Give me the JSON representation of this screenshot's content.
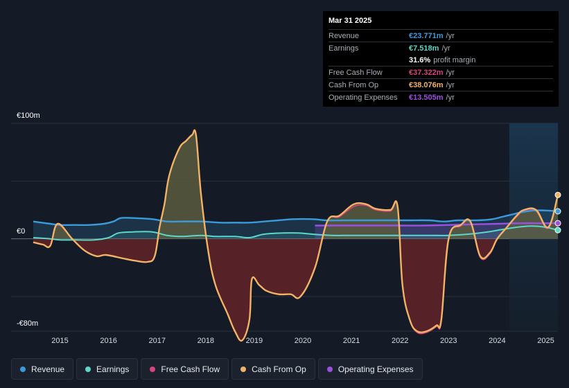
{
  "tooltip": {
    "date": "Mar 31 2025",
    "rows": [
      {
        "label": "Revenue",
        "value": "€23.771m",
        "unit": "/yr",
        "color": "#3a9bdc"
      },
      {
        "label": "Earnings",
        "value": "€7.518m",
        "unit": "/yr",
        "color": "#5ad8c8"
      },
      {
        "label": "",
        "value": "31.6%",
        "unit": "profit margin",
        "color": "#ffffff"
      },
      {
        "label": "Free Cash Flow",
        "value": "€37.322m",
        "unit": "/yr",
        "color": "#d6457d"
      },
      {
        "label": "Cash From Op",
        "value": "€38.076m",
        "unit": "/yr",
        "color": "#f2b366"
      },
      {
        "label": "Operating Expenses",
        "value": "€13.505m",
        "unit": "/yr",
        "color": "#9b51e0"
      }
    ]
  },
  "legend": [
    {
      "label": "Revenue",
      "color": "#3a9bdc"
    },
    {
      "label": "Earnings",
      "color": "#5ad8c8"
    },
    {
      "label": "Free Cash Flow",
      "color": "#d6457d"
    },
    {
      "label": "Cash From Op",
      "color": "#f2b366"
    },
    {
      "label": "Operating Expenses",
      "color": "#9b51e0"
    }
  ],
  "chart_data": {
    "type": "area",
    "ylabels": [
      "€100m",
      "€0",
      "-€80m"
    ],
    "ylim": [
      -80,
      100
    ],
    "xlim": [
      2014.45,
      2025.25
    ],
    "x_ticks": [
      2015,
      2016,
      2017,
      2018,
      2019,
      2020,
      2021,
      2022,
      2023,
      2024,
      2025
    ],
    "x_tick_labels": [
      "2015",
      "2016",
      "2017",
      "2018",
      "2019",
      "2020",
      "2021",
      "2022",
      "2023",
      "2024",
      "2025"
    ],
    "forecast_start": 2024.25,
    "series": [
      {
        "name": "Revenue",
        "color": "#3a9bdc",
        "x": [
          2014.45,
          2014.8,
          2015.0,
          2015.3,
          2015.6,
          2015.9,
          2016.1,
          2016.25,
          2016.5,
          2016.9,
          2017.2,
          2017.5,
          2017.9,
          2018.3,
          2018.6,
          2018.9,
          2019.2,
          2019.5,
          2019.8,
          2020.2,
          2020.5,
          2020.9,
          2021.2,
          2021.6,
          2021.9,
          2022.2,
          2022.6,
          2022.9,
          2023.2,
          2023.6,
          2023.9,
          2024.1,
          2024.3,
          2024.5,
          2024.75,
          2025.0,
          2025.25
        ],
        "values": [
          15,
          13,
          12,
          12,
          12,
          13,
          15,
          18,
          18,
          17,
          15,
          15,
          15,
          14,
          14,
          14,
          15,
          16,
          17,
          17,
          16,
          16,
          16,
          16,
          16,
          16,
          16,
          15,
          16,
          16,
          17,
          19,
          21,
          23,
          24.5,
          24.5,
          23.8
        ]
      },
      {
        "name": "Earnings",
        "color": "#5ad8c8",
        "x": [
          2014.45,
          2014.8,
          2015.0,
          2015.3,
          2015.7,
          2016.0,
          2016.2,
          2016.5,
          2016.9,
          2017.2,
          2017.5,
          2017.9,
          2018.2,
          2018.6,
          2018.9,
          2019.2,
          2019.6,
          2019.9,
          2020.2,
          2020.6,
          2021.0,
          2021.4,
          2021.8,
          2022.2,
          2022.6,
          2023.0,
          2023.4,
          2023.8,
          2024.1,
          2024.4,
          2024.7,
          2025.0,
          2025.25
        ],
        "values": [
          1,
          0,
          -1,
          -1,
          -1,
          1,
          5,
          6,
          6,
          3,
          2,
          3,
          2,
          2,
          1,
          4,
          5,
          5,
          4,
          3,
          3,
          3,
          3,
          3,
          3,
          3,
          4,
          6,
          8,
          10,
          11,
          10,
          7.5
        ]
      },
      {
        "name": "Operating Expenses",
        "color": "#9b51e0",
        "x": [
          2020.25,
          2020.6,
          2021.0,
          2021.5,
          2022.0,
          2022.5,
          2023.0,
          2023.5,
          2024.0,
          2024.5,
          2025.0,
          2025.25
        ],
        "values": [
          11.5,
          11.5,
          11.5,
          11.5,
          11.5,
          11.5,
          12,
          12.5,
          13,
          13.5,
          13.5,
          13.5
        ]
      },
      {
        "name": "Cash From Op",
        "color": "#f2b366",
        "x": [
          2014.45,
          2014.65,
          2014.8,
          2014.95,
          2015.25,
          2015.5,
          2015.75,
          2015.95,
          2016.3,
          2016.55,
          2016.8,
          2016.95,
          2017.05,
          2017.15,
          2017.25,
          2017.45,
          2017.6,
          2017.72,
          2017.8,
          2017.9,
          2018.05,
          2018.2,
          2018.45,
          2018.6,
          2018.75,
          2018.9,
          2018.95,
          2019.1,
          2019.25,
          2019.5,
          2019.75,
          2019.95,
          2020.25,
          2020.5,
          2020.75,
          2021.05,
          2021.3,
          2021.5,
          2021.8,
          2021.95,
          2022.05,
          2022.2,
          2022.35,
          2022.55,
          2022.75,
          2022.85,
          2023.0,
          2023.25,
          2023.45,
          2023.65,
          2023.85,
          2024.0,
          2024.2,
          2024.4,
          2024.55,
          2024.8,
          2025.05,
          2025.25
        ],
        "values": [
          -3,
          -5,
          -6,
          13,
          0,
          -10,
          -15,
          -14,
          -17,
          -19,
          -20,
          -15,
          10,
          30,
          55,
          78,
          85,
          90,
          90,
          40,
          -10,
          -40,
          -65,
          -80,
          -88,
          -70,
          -35,
          -40,
          -45,
          -48,
          -48,
          -50,
          -25,
          15,
          20,
          30,
          30,
          26,
          25,
          28,
          -40,
          -70,
          -80,
          -80,
          -75,
          -70,
          0,
          12,
          15,
          -15,
          -12,
          0,
          10,
          20,
          25,
          25,
          10,
          38
        ]
      },
      {
        "name": "Free Cash Flow",
        "color": "#d6457d",
        "x": [
          2014.45,
          2014.65,
          2014.8,
          2014.95,
          2015.25,
          2015.5,
          2015.75,
          2015.95,
          2016.3,
          2016.55,
          2016.8,
          2016.95,
          2017.05,
          2017.15,
          2017.25,
          2017.45,
          2017.6,
          2017.72,
          2017.8,
          2017.9,
          2018.05,
          2018.2,
          2018.45,
          2018.6,
          2018.75,
          2018.9,
          2018.95,
          2019.1,
          2019.25,
          2019.5,
          2019.75,
          2019.95,
          2020.25,
          2020.5,
          2020.75,
          2021.05,
          2021.3,
          2021.5,
          2021.8,
          2021.95,
          2022.05,
          2022.2,
          2022.35,
          2022.55,
          2022.75,
          2022.85,
          2023.0,
          2023.25,
          2023.45,
          2023.65,
          2023.85,
          2024.0,
          2024.2,
          2024.4,
          2024.55,
          2024.8,
          2025.05,
          2025.25
        ],
        "values": [
          -3,
          -5,
          -6,
          12,
          0,
          -10,
          -15,
          -14,
          -17,
          -19,
          -20,
          -15,
          10,
          30,
          55,
          78,
          85,
          90,
          90,
          40,
          -10,
          -40,
          -65,
          -80,
          -88,
          -70,
          -35,
          -40,
          -45,
          -48,
          -48,
          -50,
          -25,
          15,
          19,
          28,
          29,
          25,
          24,
          27,
          -40,
          -70,
          -81,
          -81,
          -76,
          -71,
          0,
          11,
          14,
          -16,
          -13,
          0,
          10,
          19,
          24,
          24,
          9,
          37
        ]
      }
    ]
  }
}
